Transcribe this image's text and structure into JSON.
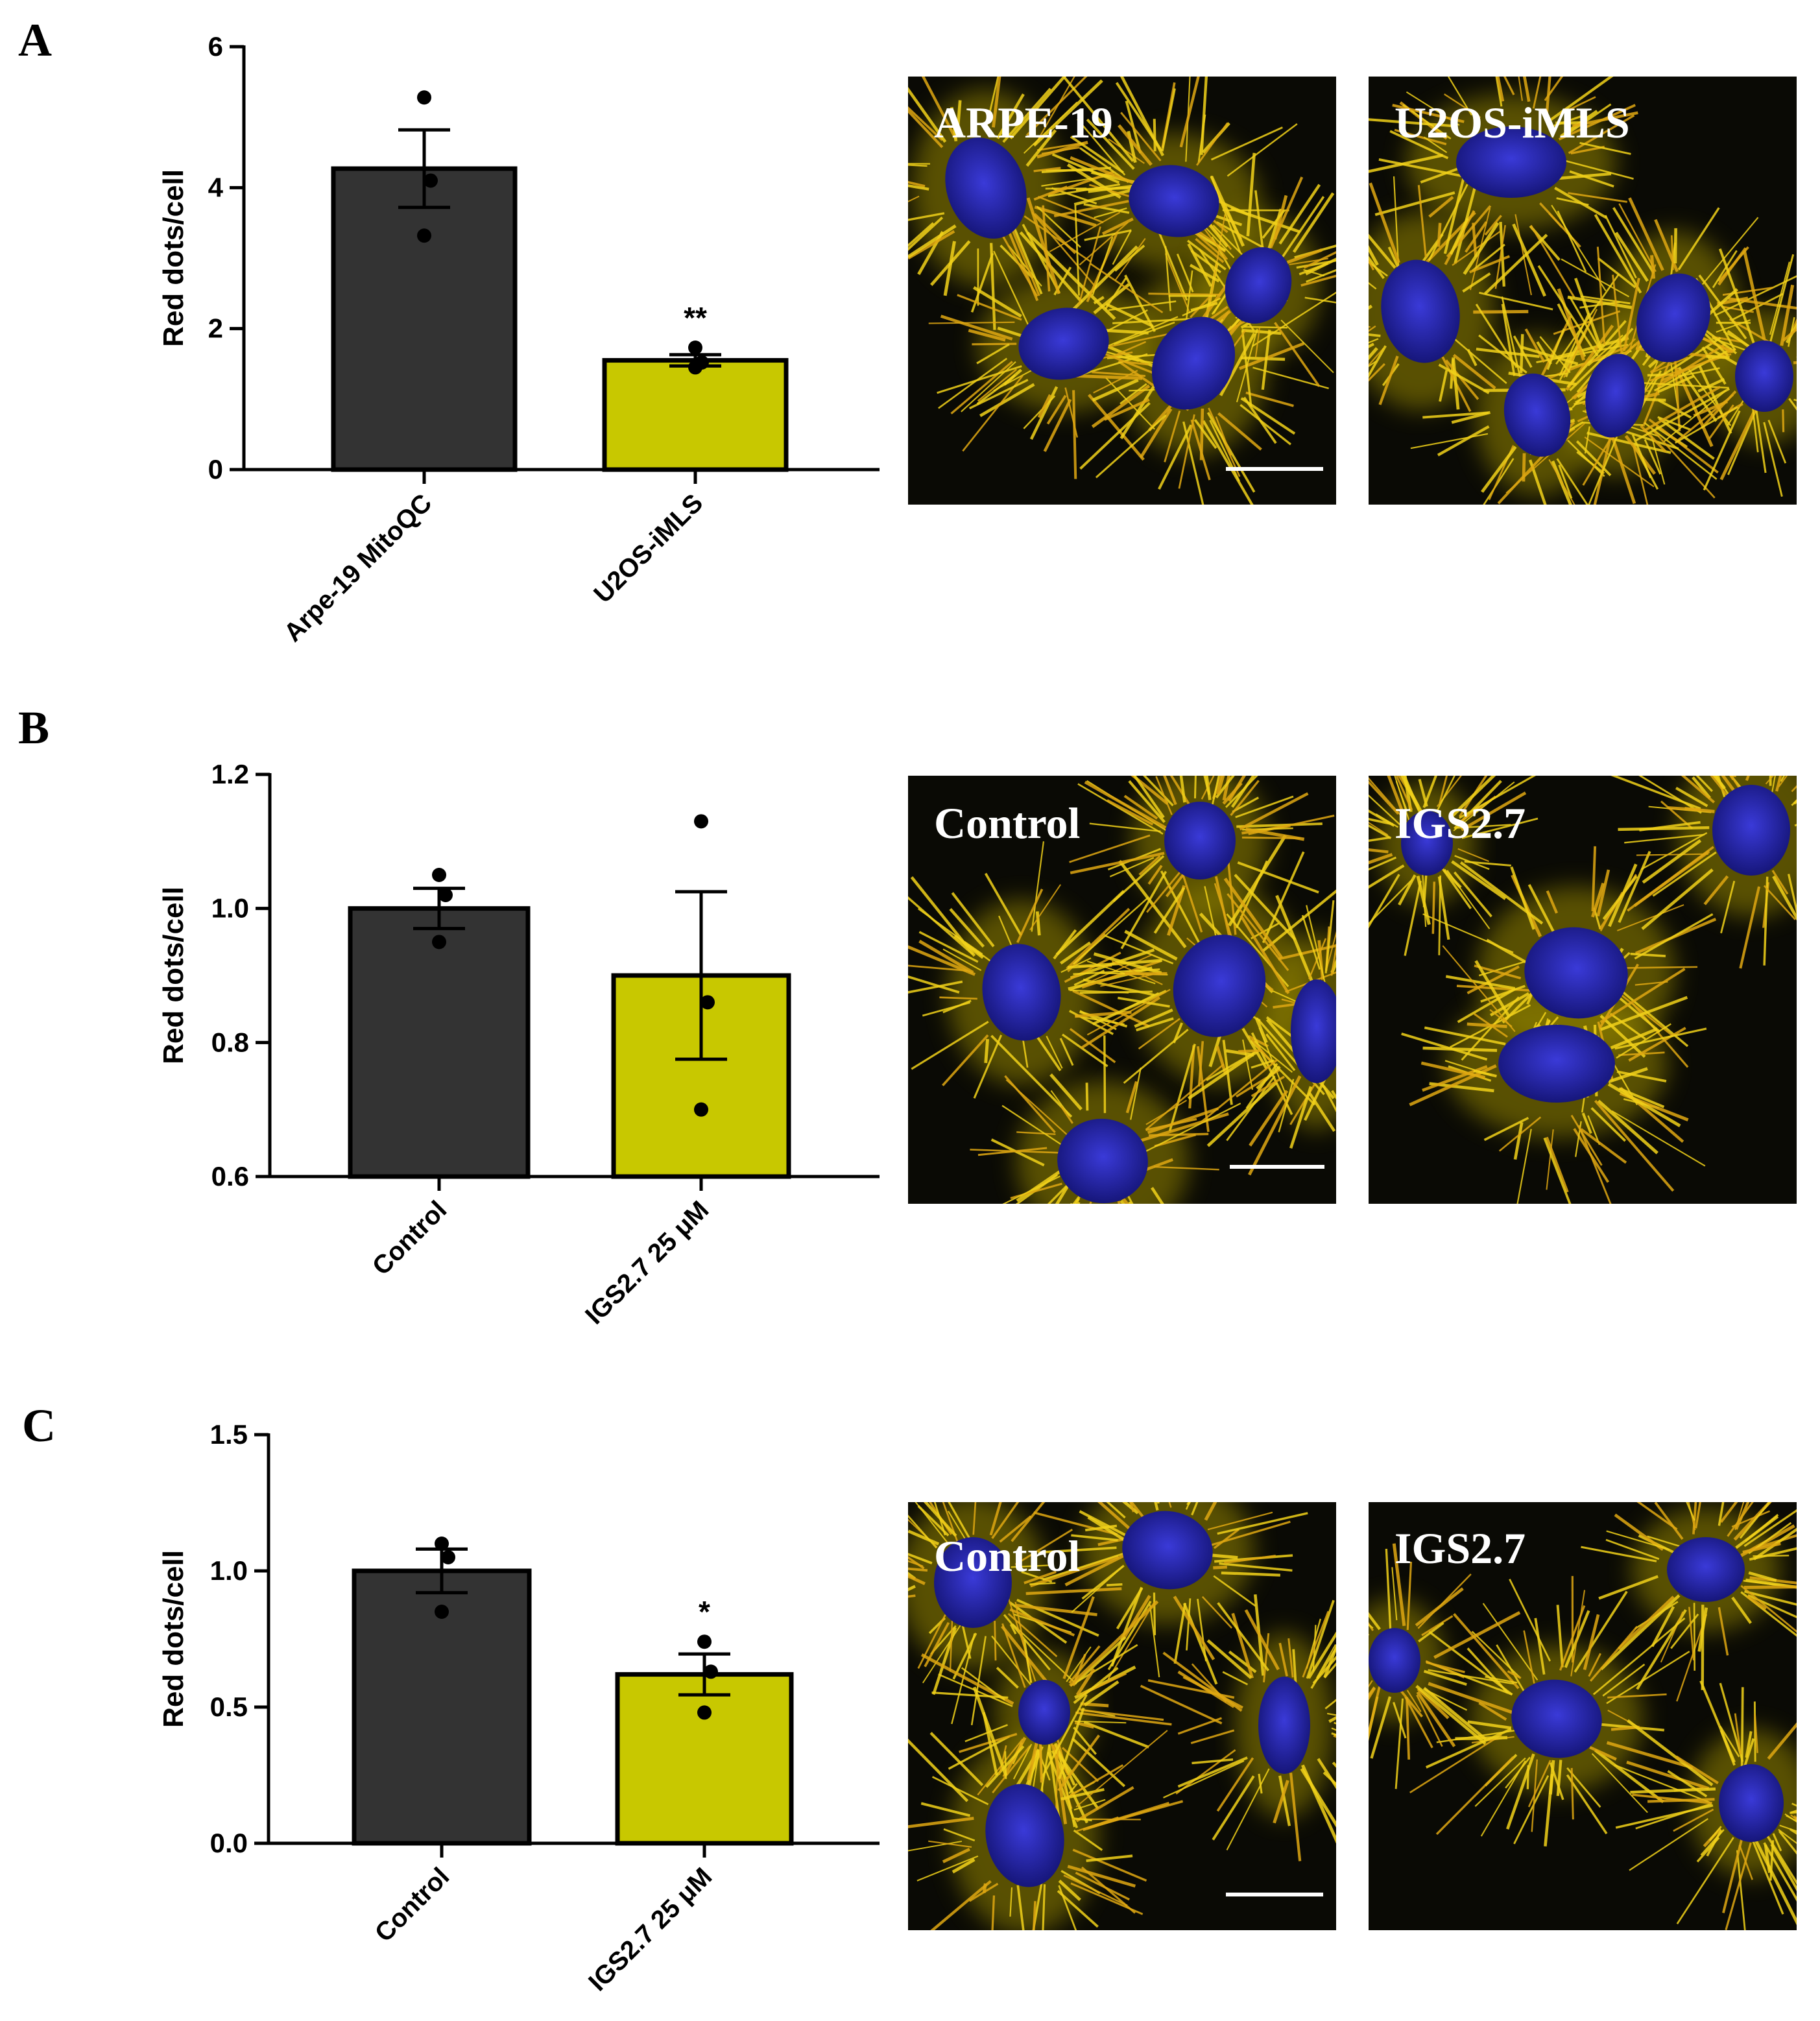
{
  "chart_data": [
    {
      "panel": "A",
      "type": "bar",
      "categories": [
        "Arpe-19 MitoQC",
        "U2OS-iMLS"
      ],
      "values": [
        4.27,
        1.55
      ],
      "sem": [
        0.55,
        0.08
      ],
      "points": [
        [
          5.28,
          4.1,
          3.32
        ],
        [
          1.73,
          1.52,
          1.45
        ]
      ],
      "significance": [
        "",
        "**"
      ],
      "ylabel": "Red dots/cell",
      "ylim": [
        0,
        6
      ],
      "yticks": [
        "0",
        "2",
        "4",
        "6"
      ],
      "colors": [
        "#333333",
        "#c8c800"
      ],
      "image_labels": [
        "ARPE-19",
        "U2OS-iMLS"
      ]
    },
    {
      "panel": "B",
      "type": "bar",
      "categories": [
        "Control",
        "IGS2.7 25 μM"
      ],
      "values": [
        1.0,
        0.9
      ],
      "sem": [
        0.03,
        0.125
      ],
      "points": [
        [
          1.05,
          1.02,
          0.95
        ],
        [
          1.13,
          0.86,
          0.7
        ]
      ],
      "significance": [
        "",
        ""
      ],
      "ylabel": "Red dots/cell",
      "ylim": [
        0.6,
        1.2
      ],
      "yticks": [
        "0.6",
        "0.8",
        "1.0",
        "1.2"
      ],
      "colors": [
        "#333333",
        "#c8c800"
      ],
      "image_labels": [
        "Control",
        "IGS2.7"
      ]
    },
    {
      "panel": "C",
      "type": "bar",
      "categories": [
        "Control",
        "IGS2.7 25 μM"
      ],
      "values": [
        1.0,
        0.62
      ],
      "sem": [
        0.08,
        0.075
      ],
      "points": [
        [
          1.1,
          1.05,
          0.85
        ],
        [
          0.74,
          0.63,
          0.48
        ]
      ],
      "significance": [
        "",
        "*"
      ],
      "ylabel": "Red dots/cell",
      "ylim": [
        0,
        1.5
      ],
      "yticks": [
        "0.0",
        "0.5",
        "1.0",
        "1.5"
      ],
      "colors": [
        "#333333",
        "#c8c800"
      ],
      "image_labels": [
        "Control",
        "IGS2.7"
      ]
    }
  ]
}
